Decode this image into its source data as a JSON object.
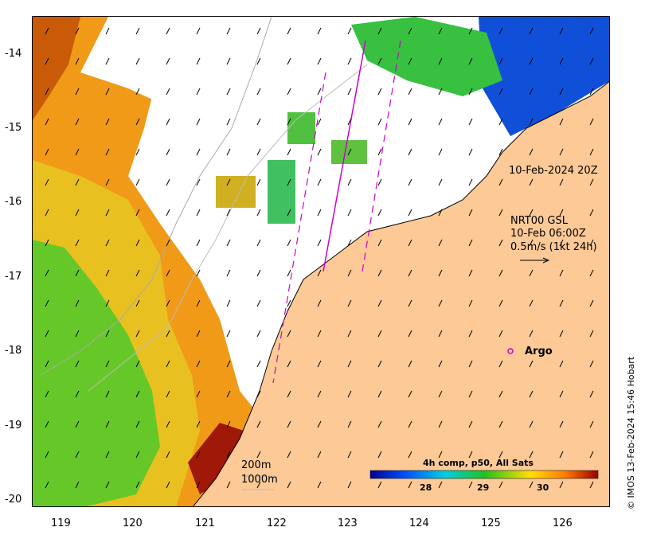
{
  "map": {
    "lat_ticks": [
      "-14",
      "-15",
      "-16",
      "-17",
      "-18",
      "-19",
      "-20"
    ],
    "lon_ticks": [
      "119",
      "120",
      "121",
      "122",
      "123",
      "124",
      "125",
      "126"
    ],
    "lon_range": [
      118.6,
      126.6
    ],
    "lat_range": [
      -20.1,
      -13.5
    ]
  },
  "annotations": {
    "track_time": "10-Feb-2024 20Z",
    "current_title": "NRT00 GSL",
    "current_time": "10-Feb 06:00Z",
    "current_scale": "0.5m/s (1kt 24h)",
    "argo_label": "Argo",
    "depth_200": "200m",
    "depth_1000": "1000m"
  },
  "colorbar": {
    "title": "4h comp, p50, All Sats",
    "ticks": [
      "28",
      "29",
      "30"
    ],
    "colors": [
      "#00008f",
      "#0050ff",
      "#00d0e0",
      "#20c020",
      "#ffe000",
      "#ff8000",
      "#a00000"
    ]
  },
  "credit": "© IMOS 13-Feb-2024 15:46 Hobart",
  "colors": {
    "land": "#fdc996",
    "argo": "#cc00cc",
    "track": "#cc00cc"
  }
}
